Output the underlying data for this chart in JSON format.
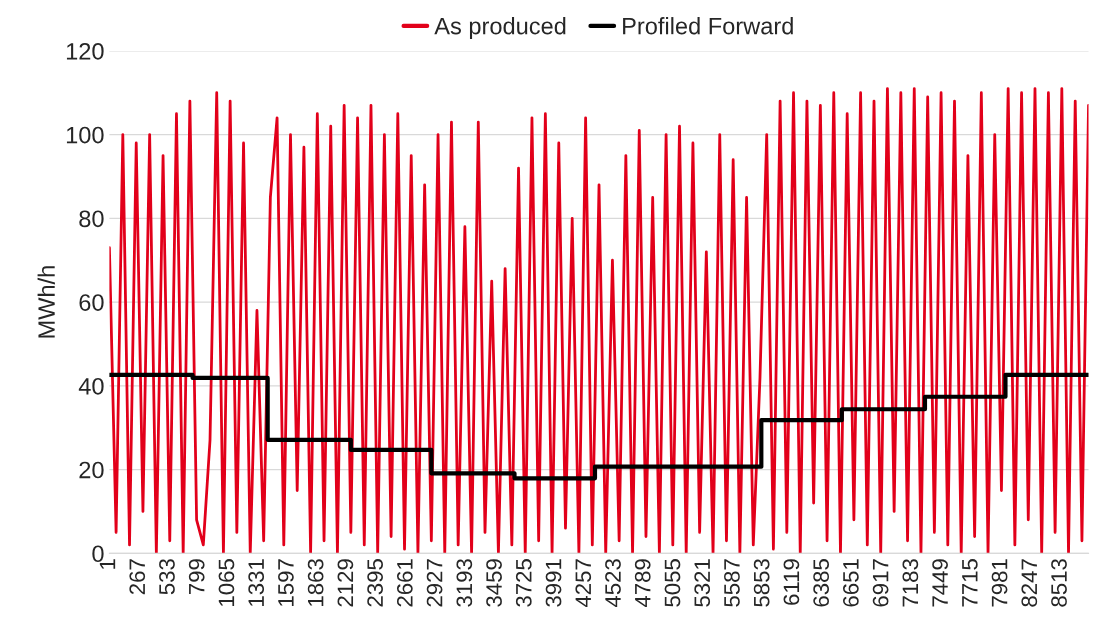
{
  "chart_data": {
    "type": "line",
    "ylabel": "MWh/h",
    "legend": "top",
    "grid": "y",
    "xlim": [
      1,
      8760
    ],
    "ylim": [
      0,
      120
    ],
    "yticks": [
      0,
      20,
      40,
      60,
      80,
      100,
      120
    ],
    "xticks": [
      1,
      267,
      533,
      799,
      1065,
      1331,
      1597,
      1863,
      2129,
      2395,
      2661,
      2927,
      3193,
      3459,
      3725,
      3991,
      4257,
      4523,
      4789,
      5055,
      5321,
      5587,
      5853,
      6119,
      6385,
      6651,
      6917,
      7183,
      7449,
      7715,
      7981,
      8247,
      8513
    ],
    "series": [
      {
        "name": "As produced",
        "color": "#e2001a",
        "x": [
          1,
          61,
          121,
          181,
          241,
          301,
          361,
          421,
          481,
          541,
          601,
          661,
          721,
          781,
          841,
          901,
          961,
          1021,
          1081,
          1141,
          1201,
          1261,
          1321,
          1381,
          1441,
          1501,
          1561,
          1621,
          1681,
          1741,
          1801,
          1861,
          1921,
          1981,
          2041,
          2101,
          2161,
          2221,
          2281,
          2341,
          2401,
          2461,
          2521,
          2581,
          2641,
          2701,
          2761,
          2821,
          2881,
          2941,
          3001,
          3061,
          3121,
          3181,
          3241,
          3301,
          3361,
          3421,
          3481,
          3541,
          3601,
          3661,
          3721,
          3781,
          3841,
          3901,
          3961,
          4021,
          4081,
          4141,
          4201,
          4261,
          4321,
          4381,
          4441,
          4501,
          4561,
          4621,
          4681,
          4741,
          4801,
          4861,
          4921,
          4981,
          5041,
          5101,
          5161,
          5221,
          5281,
          5341,
          5401,
          5461,
          5521,
          5581,
          5641,
          5701,
          5761,
          5821,
          5881,
          5941,
          6001,
          6061,
          6121,
          6181,
          6241,
          6301,
          6361,
          6421,
          6481,
          6541,
          6601,
          6661,
          6721,
          6781,
          6841,
          6901,
          6961,
          7021,
          7081,
          7141,
          7201,
          7261,
          7321,
          7381,
          7441,
          7501,
          7561,
          7621,
          7681,
          7741,
          7801,
          7861,
          7921,
          7981,
          8041,
          8101,
          8161,
          8221,
          8281,
          8341,
          8401,
          8461,
          8521,
          8581,
          8641,
          8701,
          8760
        ],
        "values": [
          73,
          5,
          100,
          2,
          98,
          10,
          100,
          0,
          95,
          3,
          105,
          0,
          108,
          8,
          2,
          27,
          110,
          0,
          108,
          5,
          98,
          0,
          58,
          3,
          85,
          104,
          2,
          100,
          15,
          97,
          0,
          105,
          3,
          102,
          0,
          107,
          5,
          104,
          2,
          107,
          0,
          100,
          4,
          105,
          1,
          95,
          0,
          88,
          3,
          100,
          0,
          103,
          2,
          78,
          0,
          103,
          5,
          65,
          0,
          68,
          2,
          92,
          0,
          104,
          3,
          105,
          0,
          98,
          6,
          80,
          0,
          104,
          2,
          88,
          0,
          70,
          3,
          95,
          0,
          101,
          4,
          85,
          0,
          100,
          2,
          102,
          0,
          98,
          5,
          72,
          0,
          100,
          3,
          94,
          0,
          85,
          2,
          42,
          100,
          1,
          108,
          5,
          110,
          0,
          108,
          12,
          107,
          3,
          110,
          0,
          105,
          8,
          110,
          2,
          108,
          0,
          111,
          10,
          110,
          3,
          111,
          0,
          109,
          5,
          110,
          2,
          108,
          0,
          95,
          4,
          110,
          0,
          100,
          15,
          111,
          2,
          110,
          8,
          111,
          0,
          110,
          5,
          111,
          0,
          108,
          3,
          107
        ]
      },
      {
        "name": "Profiled Forward",
        "color": "#000000",
        "type": "step",
        "x": [
          1,
          745,
          1417,
          2161,
          2881,
          3625,
          4345,
          5089,
          5833,
          6553,
          7297,
          8017,
          8760
        ],
        "values": [
          42.6,
          41.9,
          27.1,
          24.7,
          19.1,
          17.9,
          20.7,
          20.7,
          31.8,
          34.4,
          37.4,
          42.6,
          42.6
        ]
      }
    ]
  }
}
